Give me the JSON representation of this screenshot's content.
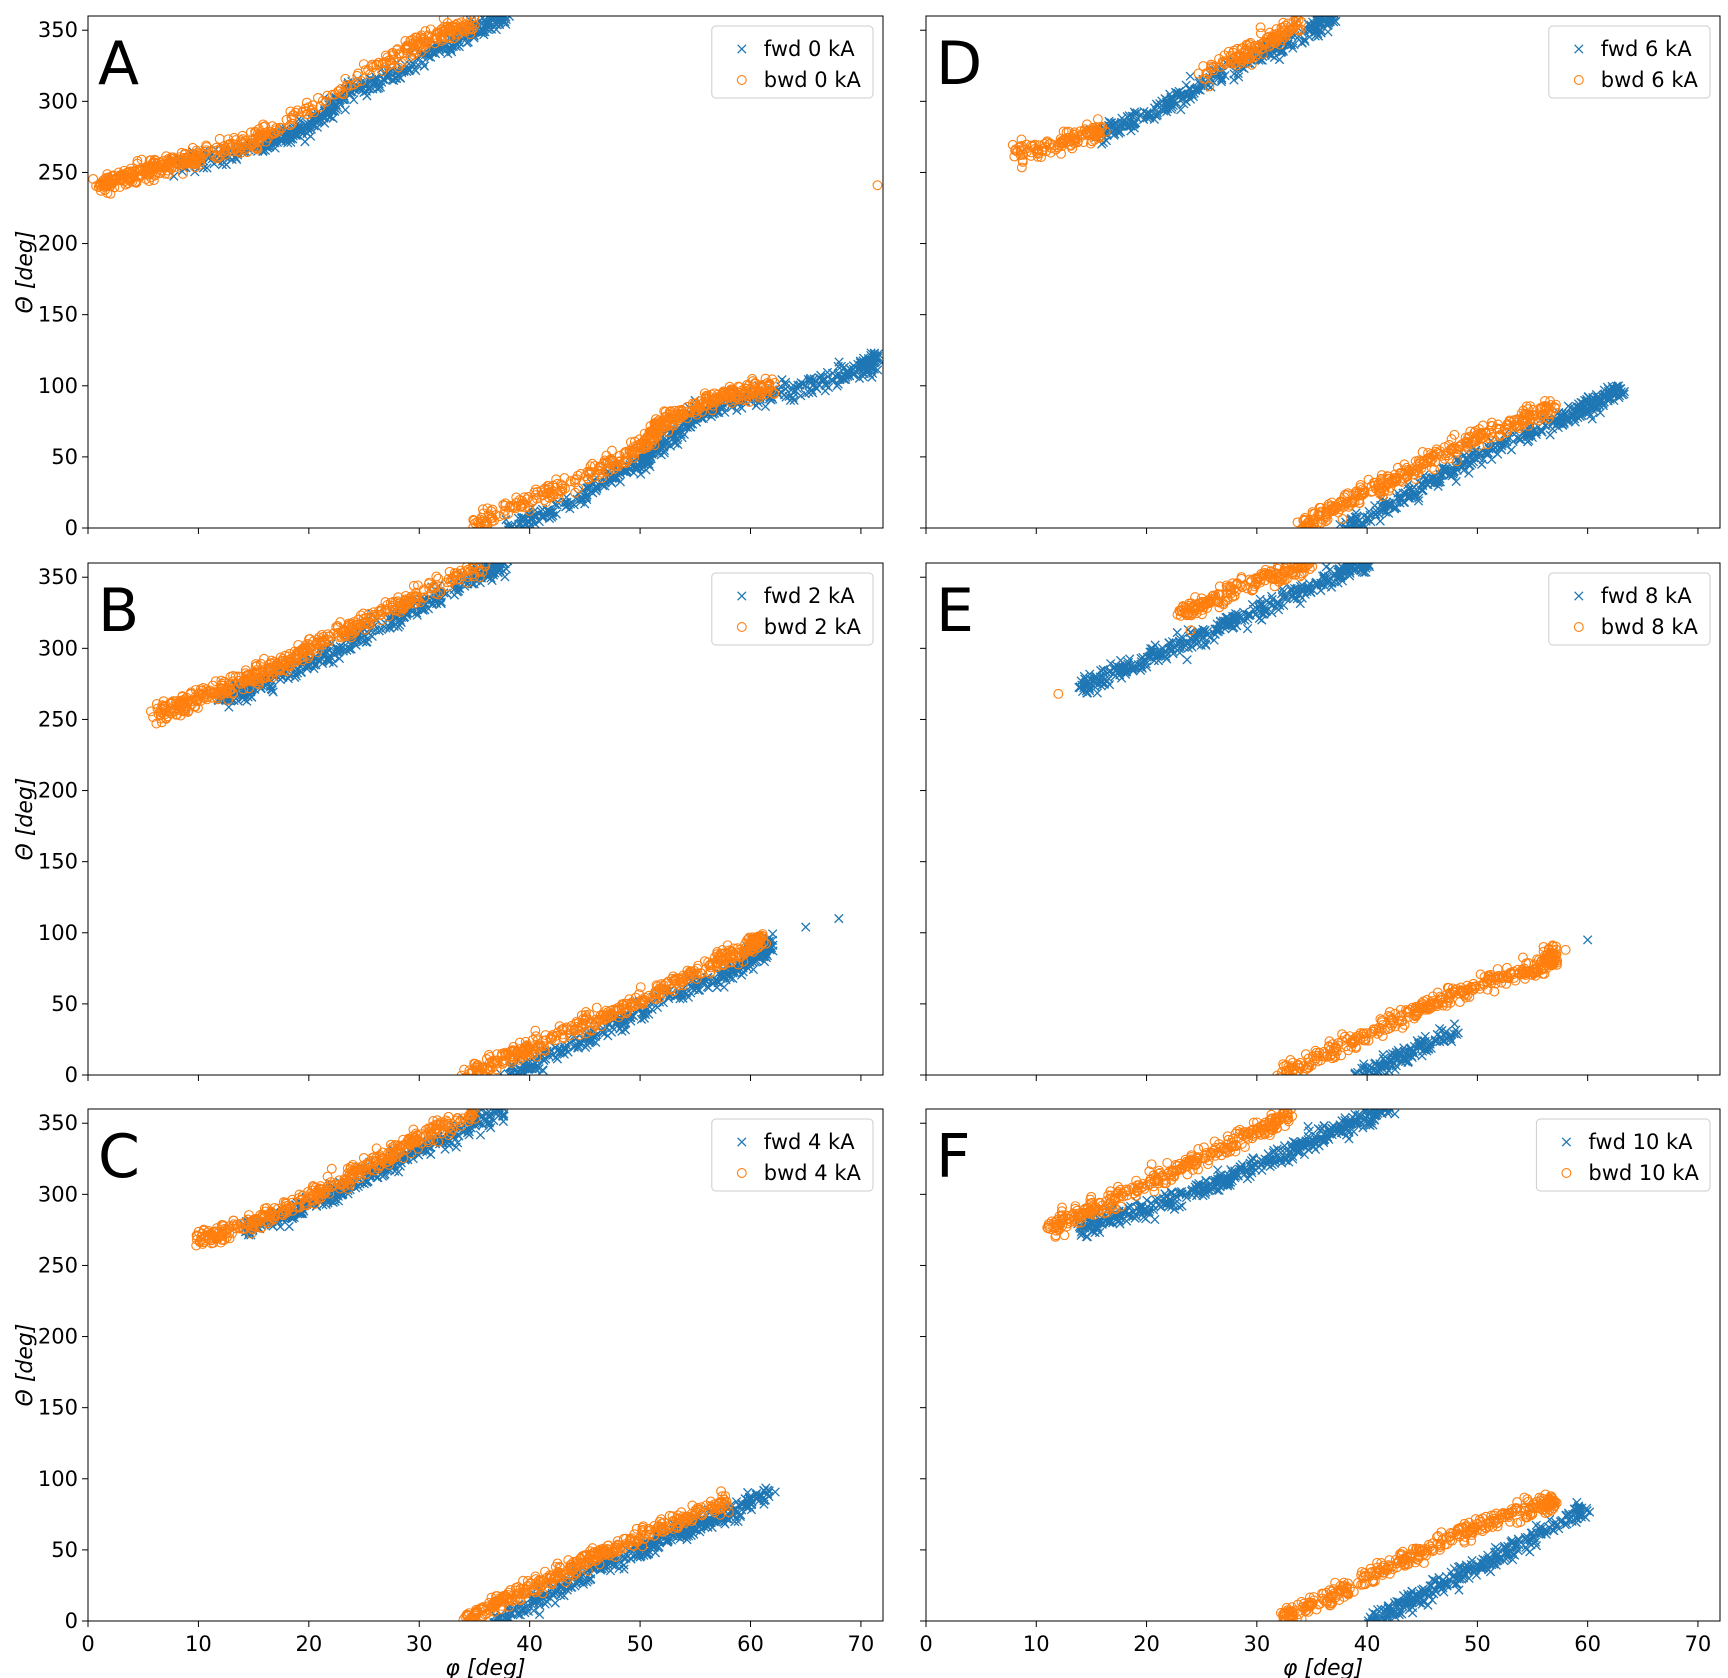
{
  "chart_data": [
    {
      "type": "scatter",
      "panel_label": "A",
      "xlabel": "",
      "ylabel": "Θ [deg]",
      "xlim": [
        0,
        72
      ],
      "ylim": [
        0,
        360
      ],
      "legend_position": "top-right",
      "xticks": [],
      "yticks": [
        0,
        50,
        100,
        150,
        200,
        250,
        300,
        350
      ],
      "series": [
        {
          "name": "fwd 0 kA",
          "marker": "x",
          "color": "#1f77b4",
          "segments": [
            {
              "x": [
                8,
                12,
                16,
                18,
                20,
                22,
                24,
                28,
                32,
                35,
                38
              ],
              "y": [
                255,
                262,
                270,
                276,
                283,
                293,
                308,
                320,
                337,
                350,
                360
              ]
            },
            {
              "x": [
                38,
                42,
                46,
                50,
                52,
                55,
                58,
                62,
                66,
                70,
                71.5
              ],
              "y": [
                0,
                12,
                28,
                46,
                58,
                78,
                88,
                95,
                102,
                112,
                120
              ]
            }
          ]
        },
        {
          "name": "bwd 0 kA",
          "marker": "o",
          "color": "#ff7f0e",
          "segments": [
            {
              "x": [
                1,
                3,
                6,
                10,
                14,
                17,
                27,
                31,
                35
              ],
              "y": [
                240,
                246,
                253,
                260,
                270,
                280,
                328,
                345,
                356
              ]
            },
            {
              "x": [
                35,
                38,
                42,
                46,
                49,
                51,
                52,
                54,
                56,
                58,
                60,
                62
              ],
              "y": [
                0,
                15,
                25,
                40,
                52,
                65,
                74,
                82,
                88,
                93,
                97,
                100
              ]
            }
          ],
          "outliers": [
            {
              "x": 71.5,
              "y": 241
            }
          ]
        }
      ]
    },
    {
      "type": "scatter",
      "panel_label": "B",
      "xlabel": "",
      "ylabel": "Θ [deg]",
      "xlim": [
        0,
        72
      ],
      "ylim": [
        0,
        360
      ],
      "legend_position": "top-right",
      "xticks": [],
      "yticks": [
        0,
        50,
        100,
        150,
        200,
        250,
        300,
        350
      ],
      "series": [
        {
          "name": "fwd 2 kA",
          "marker": "x",
          "color": "#1f77b4",
          "segments": [
            {
              "x": [
                12,
                15,
                20,
                25,
                30,
                35,
                38
              ],
              "y": [
                264,
                272,
                290,
                310,
                330,
                350,
                360
              ]
            },
            {
              "x": [
                38,
                42,
                47,
                52,
                57,
                60,
                62
              ],
              "y": [
                0,
                14,
                32,
                52,
                68,
                82,
                92
              ]
            }
          ],
          "outliers": [
            {
              "x": 65,
              "y": 104
            },
            {
              "x": 68,
              "y": 110
            }
          ]
        },
        {
          "name": "bwd 2 kA",
          "marker": "o",
          "color": "#ff7f0e",
          "segments": [
            {
              "x": [
                6,
                9,
                13,
                17,
                21,
                26,
                31,
                36
              ],
              "y": [
                252,
                262,
                274,
                287,
                303,
                323,
                342,
                360
              ]
            },
            {
              "x": [
                34,
                38,
                42,
                47,
                52,
                56,
                60,
                61
              ],
              "y": [
                0,
                12,
                26,
                42,
                60,
                76,
                90,
                96
              ]
            }
          ]
        }
      ]
    },
    {
      "type": "scatter",
      "panel_label": "C",
      "xlabel": "φ [deg]",
      "ylabel": "Θ [deg]",
      "xlim": [
        0,
        72
      ],
      "ylim": [
        0,
        360
      ],
      "legend_position": "top-right",
      "xticks": [
        0,
        10,
        20,
        30,
        40,
        50,
        60,
        70
      ],
      "yticks": [
        0,
        50,
        100,
        150,
        200,
        250,
        300,
        350
      ],
      "series": [
        {
          "name": "fwd 4 kA",
          "marker": "x",
          "color": "#1f77b4",
          "segments": [
            {
              "x": [
                14,
                18,
                22,
                26,
                30,
                34,
                38
              ],
              "y": [
                275,
                285,
                300,
                315,
                330,
                345,
                360
              ]
            },
            {
              "x": [
                37,
                42,
                47,
                52,
                57,
                62
              ],
              "y": [
                0,
                20,
                40,
                57,
                72,
                92
              ]
            }
          ]
        },
        {
          "name": "bwd 4 kA",
          "marker": "o",
          "color": "#ff7f0e",
          "segments": [
            {
              "x": [
                10,
                14,
                18,
                22,
                26,
                30,
                35
              ],
              "y": [
                267,
                278,
                290,
                305,
                322,
                340,
                358
              ]
            },
            {
              "x": [
                34,
                38,
                42,
                46,
                50,
                54,
                58
              ],
              "y": [
                0,
                16,
                30,
                46,
                60,
                72,
                85
              ]
            }
          ]
        }
      ]
    },
    {
      "type": "scatter",
      "panel_label": "D",
      "xlabel": "",
      "ylabel": "",
      "xlim": [
        0,
        72
      ],
      "ylim": [
        0,
        360
      ],
      "legend_position": "top-right",
      "xticks": [],
      "yticks": [],
      "series": [
        {
          "name": "fwd 6 kA",
          "marker": "x",
          "color": "#1f77b4",
          "segments": [
            {
              "x": [
                15,
                19,
                23,
                27,
                31,
                35,
                37
              ],
              "y": [
                275,
                287,
                303,
                320,
                335,
                350,
                360
              ]
            },
            {
              "x": [
                38,
                42,
                47,
                52,
                57,
                60,
                63
              ],
              "y": [
                0,
                16,
                38,
                58,
                74,
                86,
                97
              ]
            }
          ]
        },
        {
          "name": "bwd 6 kA",
          "marker": "o",
          "color": "#ff7f0e",
          "segments": [
            {
              "x": [
                8,
                11,
                14,
                16
              ],
              "y": [
                262,
                268,
                275,
                280
              ]
            },
            {
              "x": [
                25,
                28,
                30,
                32,
                34
              ],
              "y": [
                318,
                330,
                338,
                346,
                356
              ]
            },
            {
              "x": [
                34,
                38,
                42,
                46,
                50,
                54,
                57
              ],
              "y": [
                0,
                18,
                32,
                50,
                64,
                76,
                86
              ]
            }
          ]
        }
      ]
    },
    {
      "type": "scatter",
      "panel_label": "E",
      "xlabel": "",
      "ylabel": "",
      "xlim": [
        0,
        72
      ],
      "ylim": [
        0,
        360
      ],
      "legend_position": "top-right",
      "xticks": [],
      "yticks": [],
      "series": [
        {
          "name": "fwd 8 kA",
          "marker": "x",
          "color": "#1f77b4",
          "segments": [
            {
              "x": [
                14,
                18,
                22,
                26,
                30,
                34,
                38,
                40
              ],
              "y": [
                272,
                285,
                298,
                312,
                326,
                340,
                354,
                360
              ]
            },
            {
              "x": [
                39,
                42,
                45,
                48
              ],
              "y": [
                0,
                10,
                20,
                30
              ]
            }
          ],
          "outliers": [
            {
              "x": 60,
              "y": 95
            }
          ]
        },
        {
          "name": "bwd 8 kA",
          "marker": "o",
          "color": "#ff7f0e",
          "segments": [
            {
              "x": [
                23,
                27,
                31,
                35
              ],
              "y": [
                324,
                338,
                350,
                358
              ]
            },
            {
              "x": [
                32,
                37,
                42,
                47,
                52,
                56,
                57
              ],
              "y": [
                0,
                18,
                36,
                54,
                68,
                78,
                84
              ]
            }
          ],
          "outliers": [
            {
              "x": 12,
              "y": 268
            },
            {
              "x": 58,
              "y": 88
            }
          ]
        }
      ]
    },
    {
      "type": "scatter",
      "panel_label": "F",
      "xlabel": "φ [deg]",
      "ylabel": "",
      "xlim": [
        0,
        72
      ],
      "ylim": [
        0,
        360
      ],
      "legend_position": "top-right",
      "xticks": [
        0,
        10,
        20,
        30,
        40,
        50,
        60,
        70
      ],
      "yticks": [],
      "series": [
        {
          "name": "fwd 10 kA",
          "marker": "x",
          "color": "#1f77b4",
          "segments": [
            {
              "x": [
                14,
                18,
                22,
                26,
                30,
                34,
                38,
                42
              ],
              "y": [
                275,
                285,
                295,
                307,
                320,
                334,
                348,
                360
              ]
            },
            {
              "x": [
                40,
                44,
                48,
                52,
                56,
                60
              ],
              "y": [
                0,
                14,
                30,
                46,
                62,
                80
              ]
            }
          ]
        },
        {
          "name": "bwd 10 kA",
          "marker": "o",
          "color": "#ff7f0e",
          "segments": [
            {
              "x": [
                11,
                14,
                18,
                22,
                26,
                30,
                33
              ],
              "y": [
                276,
                286,
                300,
                315,
                330,
                344,
                356
              ]
            },
            {
              "x": [
                32,
                36,
                40,
                44,
                48,
                52,
                56,
                57
              ],
              "y": [
                0,
                14,
                30,
                46,
                60,
                72,
                82,
                85
              ]
            }
          ]
        }
      ]
    }
  ]
}
